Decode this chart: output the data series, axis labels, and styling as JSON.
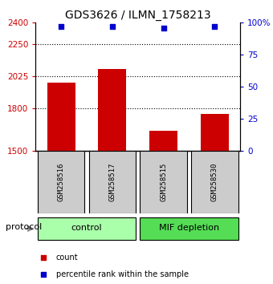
{
  "title": "GDS3626 / ILMN_1758213",
  "samples": [
    "GSM258516",
    "GSM258517",
    "GSM258515",
    "GSM258530"
  ],
  "bar_values": [
    1980,
    2075,
    1640,
    1755
  ],
  "percentile_values": [
    97,
    97,
    96,
    97
  ],
  "bar_color": "#cc0000",
  "dot_color": "#0000cc",
  "ylim_left": [
    1500,
    2400
  ],
  "ylim_right": [
    0,
    100
  ],
  "yticks_left": [
    1500,
    1800,
    2025,
    2250,
    2400
  ],
  "ytick_labels_left": [
    "1500",
    "1800",
    "2025",
    "2250",
    "2400"
  ],
  "yticks_right": [
    0,
    25,
    50,
    75,
    100
  ],
  "ytick_labels_right": [
    "0",
    "25",
    "50",
    "75",
    "100%"
  ],
  "hlines": [
    1800,
    2025,
    2250
  ],
  "groups": [
    {
      "label": "control",
      "indices": [
        0,
        1
      ],
      "color": "#aaffaa"
    },
    {
      "label": "MIF depletion",
      "indices": [
        2,
        3
      ],
      "color": "#55dd55"
    }
  ],
  "protocol_label": "protocol",
  "legend_items": [
    {
      "color": "#cc0000",
      "label": "count"
    },
    {
      "color": "#0000cc",
      "label": "percentile rank within the sample"
    }
  ],
  "bar_width": 0.55,
  "title_fontsize": 10,
  "axis_label_color_left": "#cc0000",
  "axis_label_color_right": "#0000cc",
  "sample_box_color": "#cccccc",
  "bg_color": "#ffffff"
}
